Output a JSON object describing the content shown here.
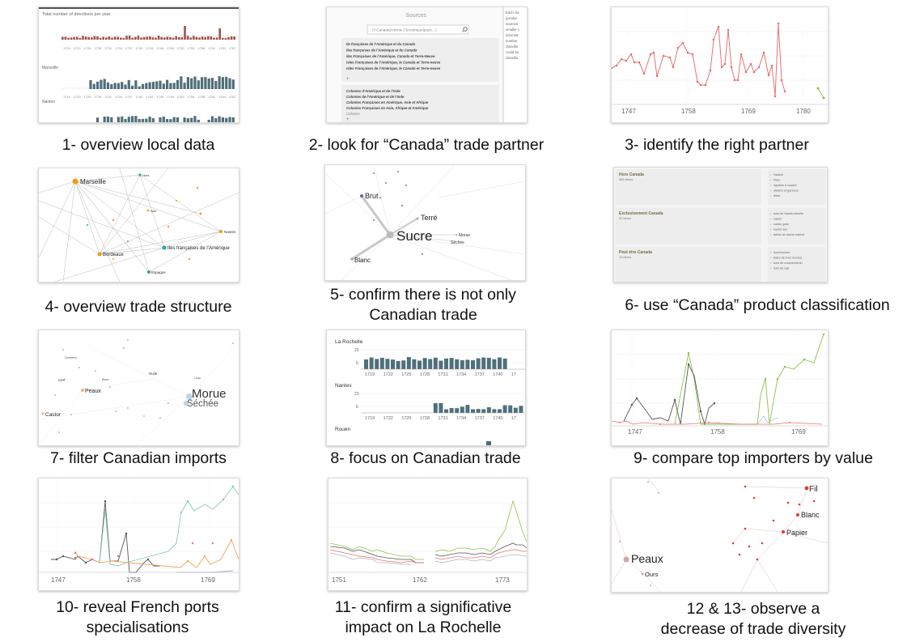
{
  "captions": [
    "1- overview local data",
    "2- look for “Canada” trade partner",
    "3- identify the right partner",
    "4- overview trade structure",
    "5- confirm there is not only Canadian trade",
    "6- use “Canada” product classification",
    "7- filter Canadian imports",
    "8- focus on Canadian trade",
    "9- compare top importers by value",
    "10- reveal French ports specialisations",
    "11- confirm a significative impact on La Rochelle",
    "12 & 13- observe a decrease of trade diversity"
  ],
  "p1": {
    "title": "Total number of directions per year",
    "sections": [
      "Marseille",
      "Nantes"
    ],
    "years": [
      "1719",
      "1722",
      "1725",
      "1728",
      "1731",
      "1734",
      "1737",
      "1740",
      "1743",
      "1746",
      "1749",
      "1752",
      "1755",
      "1758",
      "1761",
      "1764",
      "1767"
    ]
  },
  "p2": {
    "header": "Sources",
    "search": "(?:Canada|colonie [’']Amérique|pays…)",
    "group1": [
      "Ile françaises de l’Amérique et du Canada",
      "Iles françaises de l’Amérique et du Canada",
      "Iles Françaises de l’Amérique, Canada et Terre-Neuve",
      "Isles Françaises de l’Amérique, le Canada et Terre-neuve",
      "Isles Françaises de l’Amérique, le Canada et Terre-neuve"
    ],
    "group2": [
      "Colonies d’Amérique et de l’Inde",
      "Colonies de l’Amérique et de l’Inde",
      "Colonies Françaises en Amérique, Asie et Afrique",
      "Colonies Françaises en Asie, Afrique et Amérique",
      "Colonies"
    ],
    "side": [
      "Each cla",
      "(produc",
      "sources",
      "smaller c",
      "informat",
      "number",
      "classifie",
      "could be",
      "classifie"
    ]
  },
  "p3": {
    "ticks": [
      "1747",
      "1758",
      "1769",
      "1780"
    ]
  },
  "p4": {
    "nodes": [
      "Marseille",
      "Bordeaux",
      "Iles françaises de l’Amérique",
      "Espagne",
      "Nantes",
      "Hors",
      "Italie"
    ]
  },
  "p5": {
    "nodes": [
      "Brut",
      "Terré",
      "Sucre",
      "Morue",
      "Séchée",
      "Blanc"
    ]
  },
  "p6": {
    "groups": [
      {
        "title": "Hors Canada",
        "count": "585 items",
        "items": [
          "Nankin",
          "Filés",
          "éguilles à coudre",
          "alisiers et garance",
          "éther"
        ]
      },
      {
        "title": "Exclusivement Canada",
        "count": "52 items",
        "items": [
          "bois de Sainte-Marthe",
          "castor",
          "castor gras",
          "castor sec",
          "dents de vache marine"
        ]
      },
      {
        "title": "Peut être Canada",
        "count": "18 items",
        "items": [
          "bourbonnes",
          "billes de bois montsé",
          "bois de machemichin",
          "bois de sap"
        ]
      }
    ]
  },
  "p7": {
    "big": [
      "Morue",
      "Séchée"
    ],
    "labels": [
      "Peaux",
      "Castor",
      "Cerf",
      "Huile",
      "Chevreuil",
      "Loup",
      "Blanc"
    ]
  },
  "p8": {
    "ports": [
      "La Rochelle",
      "Nantes",
      "Rouen"
    ],
    "yticks": [
      "23",
      "6"
    ],
    "years": [
      "1719",
      "1722",
      "1725",
      "1728",
      "1731",
      "1734",
      "1737",
      "1740",
      "17"
    ]
  },
  "p9": {
    "ticks": [
      "1747",
      "1758",
      "1769"
    ]
  },
  "p10": {
    "ticks": [
      "1747",
      "1758",
      "1769"
    ]
  },
  "p11": {
    "ticks": [
      "1751",
      "1762",
      "1773"
    ]
  },
  "p12": {
    "nodes": [
      "Fil",
      "Blanc",
      "Papier",
      "Peaux",
      "Ours"
    ]
  }
}
